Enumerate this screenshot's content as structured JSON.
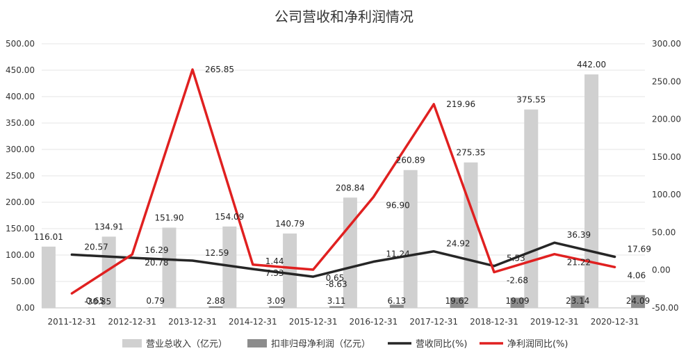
{
  "chart_data": {
    "type": "bar",
    "title": "公司营收和净利润情况",
    "categories": [
      "2011-12-31",
      "2012-12-31",
      "2013-12-31",
      "2014-12-31",
      "2015-12-31",
      "2016-12-31",
      "2017-12-31",
      "2018-12-31",
      "2019-12-31",
      "2020-12-31"
    ],
    "series": [
      {
        "name": "营业总收入（亿元）",
        "type": "bar",
        "axis": "left",
        "color": "#d0d0d0",
        "values": [
          116.01,
          134.91,
          151.9,
          154.09,
          140.79,
          208.84,
          260.89,
          275.35,
          375.55,
          442.0
        ],
        "labels": [
          "116.01",
          "134.91",
          "151.90",
          "154.09",
          "140.79",
          "208.84",
          "260.89",
          "275.35",
          "375.55",
          "442.00"
        ]
      },
      {
        "name": "扣非归母净利润（亿元）",
        "type": "bar",
        "axis": "left",
        "color": "#8c8c8c",
        "values": [
          0.65,
          0.79,
          2.88,
          3.09,
          3.11,
          6.13,
          19.62,
          19.09,
          23.14,
          24.09
        ],
        "labels": [
          "0.65",
          "0.79",
          "2.88",
          "3.09",
          "3.11",
          "6.13",
          "19.62",
          "19.09",
          "23.14",
          "24.09"
        ]
      },
      {
        "name": "营收同比(%)",
        "type": "line",
        "axis": "right",
        "color": "#262626",
        "values": [
          20.57,
          16.29,
          12.59,
          1.44,
          -8.63,
          11.24,
          24.92,
          5.53,
          36.39,
          17.69
        ],
        "labels": [
          "20.57",
          "16.29",
          "12.59",
          "1.44",
          "-8.63",
          "11.24",
          "24.92",
          "5.53",
          "36.39",
          "17.69"
        ]
      },
      {
        "name": "净利润同比(%)",
        "type": "line",
        "axis": "right",
        "color": "#e02020",
        "values": [
          -30.85,
          20.78,
          265.85,
          7.33,
          0.65,
          96.9,
          219.96,
          -2.68,
          21.22,
          4.06
        ],
        "labels": [
          "-30.85",
          "20.78",
          "265.85",
          "7.33",
          "0.65",
          "96.90",
          "219.96",
          "-2.68",
          "21.22",
          "4.06"
        ]
      }
    ],
    "yleft": {
      "min": 0,
      "max": 500,
      "step": 50,
      "ticks": [
        "0.00",
        "50.00",
        "100.00",
        "150.00",
        "200.00",
        "250.00",
        "300.00",
        "350.00",
        "400.00",
        "450.00",
        "500.00"
      ]
    },
    "yright": {
      "min": -50,
      "max": 300,
      "step": 50,
      "ticks": [
        "-50.00",
        "0.00",
        "50.00",
        "100.00",
        "150.00",
        "200.00",
        "250.00",
        "300.00"
      ]
    },
    "grid": true,
    "legend_position": "bottom"
  }
}
